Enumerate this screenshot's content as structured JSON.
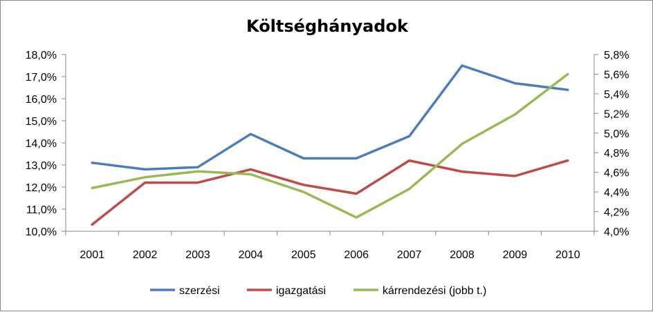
{
  "chart_data": {
    "type": "line",
    "title": "Költséghányadok",
    "categories": [
      "2001",
      "2002",
      "2003",
      "2004",
      "2005",
      "2006",
      "2007",
      "2008",
      "2009",
      "2010"
    ],
    "y_left": {
      "ylim": [
        10.0,
        18.0
      ],
      "ticks": [
        10,
        11,
        12,
        13,
        14,
        15,
        16,
        17,
        18
      ],
      "tick_labels": [
        "10,0%",
        "11,0%",
        "12,0%",
        "13,0%",
        "14,0%",
        "15,0%",
        "16,0%",
        "17,0%",
        "18,0%"
      ]
    },
    "y_right": {
      "ylim": [
        4.0,
        5.8
      ],
      "ticks": [
        4.0,
        4.2,
        4.4,
        4.6,
        4.8,
        5.0,
        5.2,
        5.4,
        5.6,
        5.8
      ],
      "tick_labels": [
        "4,0%",
        "4,2%",
        "4,4%",
        "4,6%",
        "4,8%",
        "5,0%",
        "5,2%",
        "5,4%",
        "5,6%",
        "5,8%"
      ]
    },
    "series": [
      {
        "name": "szerzési",
        "axis": "left",
        "color": "#4a7ebb",
        "values": [
          13.1,
          12.8,
          12.9,
          14.4,
          13.3,
          13.3,
          14.3,
          17.5,
          16.7,
          16.4
        ]
      },
      {
        "name": "igazgatási",
        "axis": "left",
        "color": "#be4b48",
        "values": [
          10.3,
          12.2,
          12.2,
          12.8,
          12.1,
          11.7,
          13.2,
          12.7,
          12.5,
          13.2
        ]
      },
      {
        "name": "kárrendezési (jobb t.)",
        "axis": "right",
        "color": "#98b954",
        "values": [
          4.44,
          4.55,
          4.61,
          4.58,
          4.4,
          4.14,
          4.43,
          4.89,
          5.19,
          5.6
        ]
      }
    ],
    "legend": "bottom",
    "grid": false
  }
}
